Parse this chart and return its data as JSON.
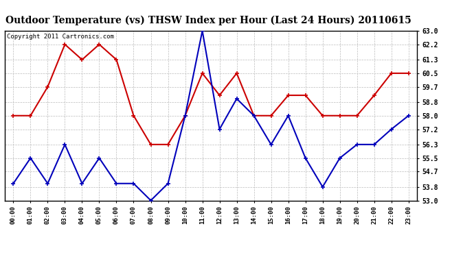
{
  "title": "Outdoor Temperature (vs) THSW Index per Hour (Last 24 Hours) 20110615",
  "copyright": "Copyright 2011 Cartronics.com",
  "hours": [
    "00:00",
    "01:00",
    "02:00",
    "03:00",
    "04:00",
    "05:00",
    "06:00",
    "07:00",
    "08:00",
    "09:00",
    "10:00",
    "11:00",
    "12:00",
    "13:00",
    "14:00",
    "15:00",
    "16:00",
    "17:00",
    "18:00",
    "19:00",
    "20:00",
    "21:00",
    "22:00",
    "23:00"
  ],
  "temp_blue": [
    54.0,
    55.5,
    54.0,
    56.3,
    54.0,
    55.5,
    54.0,
    54.0,
    53.0,
    54.0,
    58.0,
    63.0,
    57.2,
    59.0,
    58.0,
    56.3,
    58.0,
    55.5,
    53.8,
    55.5,
    56.3,
    56.3,
    57.2,
    58.0
  ],
  "thsw_red": [
    58.0,
    58.0,
    59.7,
    62.2,
    61.3,
    62.2,
    61.3,
    58.0,
    56.3,
    56.3,
    58.0,
    60.5,
    59.2,
    60.5,
    58.0,
    58.0,
    59.2,
    59.2,
    58.0,
    58.0,
    58.0,
    59.2,
    60.5,
    60.5
  ],
  "ylim_min": 53.0,
  "ylim_max": 63.0,
  "yticks": [
    53.0,
    53.8,
    54.7,
    55.5,
    56.3,
    57.2,
    58.0,
    58.8,
    59.7,
    60.5,
    61.3,
    62.2,
    63.0
  ],
  "bg_color": "#FFFFFF",
  "plot_bg_color": "#FFFFFF",
  "grid_color": "#BBBBBB",
  "blue_color": "#0000BB",
  "red_color": "#CC0000",
  "title_fontsize": 10,
  "copyright_fontsize": 6.5,
  "title_font": "DejaVu Serif",
  "marker_size": 3
}
